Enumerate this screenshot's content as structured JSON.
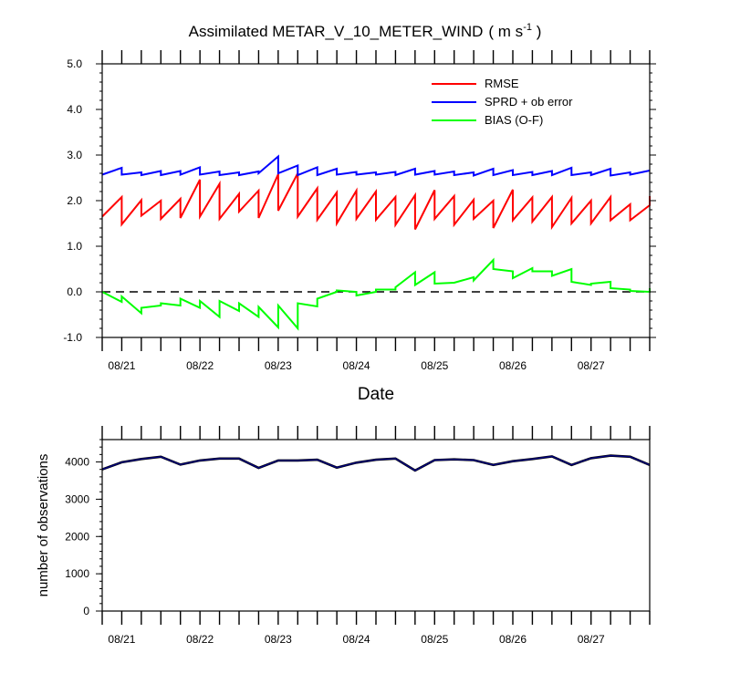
{
  "chart_data": [
    {
      "type": "line",
      "title": "Assimilated METAR_V_10_METER_WIND",
      "title_unit": {
        "open": "( m s",
        "sup": "-1",
        "close": " )"
      },
      "xlabel": "Date",
      "ylabel": "",
      "ylim": [
        -1.0,
        5.0
      ],
      "y_ticks": [
        "-1.0",
        "0.0",
        "1.0",
        "2.0",
        "3.0",
        "4.0",
        "5.0"
      ],
      "x_tick_labels": [
        "08/21",
        "08/22",
        "08/23",
        "08/24",
        "08/25",
        "08/26",
        "08/27"
      ],
      "x_times": [
        20.75,
        21.0,
        21.25,
        21.5,
        21.75,
        22.0,
        22.25,
        22.5,
        22.75,
        23.0,
        23.25,
        23.5,
        23.75,
        24.0,
        24.25,
        24.5,
        24.75,
        25.0,
        25.25,
        25.5,
        25.75,
        26.0,
        26.25,
        26.5,
        26.75,
        27.0,
        27.25,
        27.5,
        27.75
      ],
      "xlim": [
        20.75,
        27.75
      ],
      "grid": false,
      "legend_position": "top-right",
      "zero_line": "dashed",
      "series": [
        {
          "name": "RMSE",
          "color": "#ff0000",
          "pairs": [
            [
              1.65,
              2.08
            ],
            [
              1.48,
              2.01
            ],
            [
              1.67,
              2.0
            ],
            [
              1.6,
              2.04
            ],
            [
              1.62,
              2.46
            ],
            [
              1.65,
              2.37
            ],
            [
              1.6,
              2.15
            ],
            [
              1.76,
              2.22
            ],
            [
              1.62,
              2.58
            ],
            [
              1.78,
              2.6
            ],
            [
              1.65,
              2.27
            ],
            [
              1.58,
              2.18
            ],
            [
              1.5,
              2.22
            ],
            [
              1.6,
              2.2
            ],
            [
              1.58,
              2.08
            ],
            [
              1.47,
              2.12
            ],
            [
              1.37,
              2.23
            ],
            [
              1.6,
              2.1
            ],
            [
              1.47,
              2.02
            ],
            [
              1.6,
              2.0
            ],
            [
              1.4,
              2.24
            ],
            [
              1.57,
              2.07
            ],
            [
              1.54,
              2.08
            ],
            [
              1.42,
              2.06
            ],
            [
              1.5,
              2.0
            ],
            [
              1.5,
              2.08
            ],
            [
              1.57,
              1.92
            ],
            [
              1.57,
              1.9
            ],
            [
              2.1
            ]
          ]
        },
        {
          "name": "SPRD + ob error",
          "color": "#0000ff",
          "pairs": [
            [
              2.57,
              2.72
            ],
            [
              2.57,
              2.62
            ],
            [
              2.56,
              2.65
            ],
            [
              2.56,
              2.65
            ],
            [
              2.57,
              2.73
            ],
            [
              2.57,
              2.64
            ],
            [
              2.56,
              2.62
            ],
            [
              2.56,
              2.64
            ],
            [
              2.6,
              2.97
            ],
            [
              2.6,
              2.77
            ],
            [
              2.56,
              2.73
            ],
            [
              2.56,
              2.7
            ],
            [
              2.57,
              2.63
            ],
            [
              2.57,
              2.62
            ],
            [
              2.57,
              2.63
            ],
            [
              2.56,
              2.7
            ],
            [
              2.57,
              2.65
            ],
            [
              2.57,
              2.64
            ],
            [
              2.56,
              2.62
            ],
            [
              2.55,
              2.7
            ],
            [
              2.56,
              2.67
            ],
            [
              2.56,
              2.63
            ],
            [
              2.56,
              2.65
            ],
            [
              2.56,
              2.72
            ],
            [
              2.56,
              2.62
            ],
            [
              2.56,
              2.7
            ],
            [
              2.55,
              2.62
            ],
            [
              2.57,
              2.66
            ],
            [
              2.66
            ]
          ]
        },
        {
          "name": "BIAS (O-F)",
          "color": "#00ff00",
          "pairs": [
            [
              0.0,
              -0.22
            ],
            [
              -0.1,
              -0.47
            ],
            [
              -0.35,
              -0.3
            ],
            [
              -0.25,
              -0.3
            ],
            [
              -0.15,
              -0.35
            ],
            [
              -0.2,
              -0.55
            ],
            [
              -0.2,
              -0.42
            ],
            [
              -0.25,
              -0.55
            ],
            [
              -0.33,
              -0.78
            ],
            [
              -0.3,
              -0.8
            ],
            [
              -0.25,
              -0.32
            ],
            [
              -0.15,
              0.0
            ],
            [
              0.03,
              0.0
            ],
            [
              -0.08,
              0.0
            ],
            [
              0.05,
              0.05
            ],
            [
              0.1,
              0.43
            ],
            [
              0.15,
              0.43
            ],
            [
              0.18,
              0.2
            ],
            [
              0.2,
              0.32
            ],
            [
              0.25,
              0.7
            ],
            [
              0.5,
              0.45
            ],
            [
              0.3,
              0.52
            ],
            [
              0.45,
              0.45
            ],
            [
              0.35,
              0.5
            ],
            [
              0.22,
              0.15
            ],
            [
              0.18,
              0.22
            ],
            [
              0.08,
              0.05
            ],
            [
              0.02,
              0.0
            ],
            [
              0.08
            ]
          ]
        }
      ]
    },
    {
      "type": "line",
      "title": "",
      "xlabel": "",
      "ylabel": "number of observations",
      "ylim": [
        0,
        4600
      ],
      "y_ticks": [
        "0",
        "1000",
        "2000",
        "3000",
        "4000"
      ],
      "x_tick_labels": [
        "08/21",
        "08/22",
        "08/23",
        "08/24",
        "08/25",
        "08/26",
        "08/27"
      ],
      "grid": false,
      "series": [
        {
          "color": "#000080",
          "values": [
            3800,
            3990,
            4080,
            4140,
            3930,
            4040,
            4090,
            4090,
            3840,
            4040,
            4040,
            4060,
            3850,
            3980,
            4060,
            4090,
            3770,
            4050,
            4070,
            4050,
            3920,
            4020,
            4080,
            4150,
            3920,
            4100,
            4170,
            4140,
            3920
          ]
        }
      ]
    }
  ]
}
